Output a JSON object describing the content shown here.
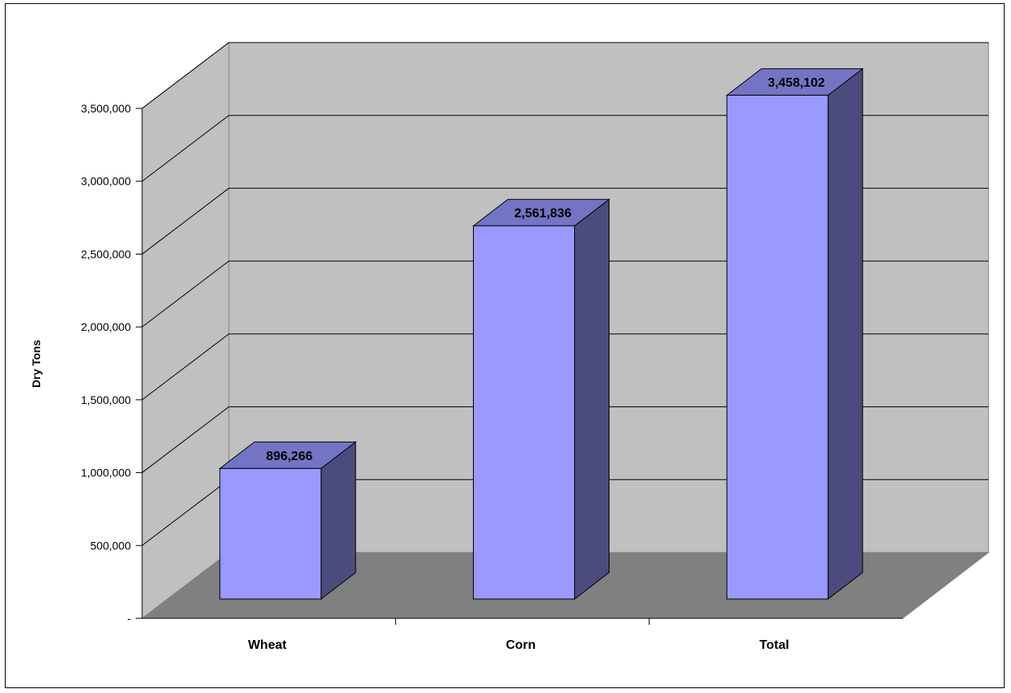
{
  "chart_data": {
    "type": "bar",
    "title": "",
    "xlabel": "",
    "ylabel": "Dry Tons",
    "categories": [
      "Wheat",
      "Corn",
      "Total"
    ],
    "values": [
      896266,
      2561836,
      3458102
    ],
    "value_labels": [
      "896,266",
      "2,561,836",
      "3,458,102"
    ],
    "ylim": [
      0,
      3500000
    ],
    "yticks": [
      0,
      500000,
      1000000,
      1500000,
      2000000,
      2500000,
      3000000,
      3500000
    ],
    "ytick_labels": [
      "-",
      "500,000",
      "1,000,000",
      "1,500,000",
      "2,000,000",
      "2,500,000",
      "3,000,000",
      "3,500,000"
    ],
    "grid": true,
    "style": "3d-column",
    "legend": "none",
    "colors": {
      "bar_front": "#9999FF",
      "bar_side": "#4B4B7E",
      "bar_top": "#7474C4",
      "back_wall": "#C0C0C0",
      "side_wall": "#C0C0C0",
      "floor": "#808080"
    }
  }
}
